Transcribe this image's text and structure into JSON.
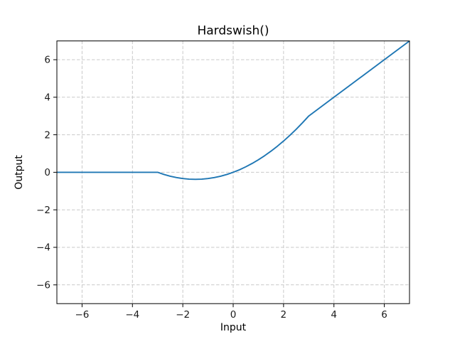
{
  "figure": {
    "title": "Hardswish()",
    "xlabel": "Input",
    "ylabel": "Output"
  },
  "chart_data": {
    "type": "line",
    "title": "Hardswish()",
    "xlabel": "Input",
    "ylabel": "Output",
    "xlim": [
      -7,
      7
    ],
    "ylim": [
      -7,
      7
    ],
    "xticks": [
      -6,
      -4,
      -2,
      0,
      2,
      4,
      6
    ],
    "yticks": [
      -6,
      -4,
      -2,
      0,
      2,
      4,
      6
    ],
    "xtick_labels": [
      "−6",
      "−4",
      "−2",
      "0",
      "2",
      "4",
      "6"
    ],
    "ytick_labels": [
      "−6",
      "−4",
      "−2",
      "0",
      "2",
      "4",
      "6"
    ],
    "grid": true,
    "grid_linestyle": "dashed",
    "grid_color": "#c9c9c9",
    "legend": "none",
    "series": [
      {
        "name": "Hardswish",
        "color": "#1f77b4",
        "x": [
          -7,
          -3,
          -2.75,
          -2.5,
          -2.25,
          -2,
          -1.75,
          -1.5,
          -1.25,
          -1,
          -0.75,
          -0.5,
          -0.25,
          0,
          0.25,
          0.5,
          0.75,
          1,
          1.25,
          1.5,
          1.75,
          2,
          2.25,
          2.5,
          2.75,
          3,
          4,
          5,
          6,
          7
        ],
        "y": [
          0,
          0,
          -0.1146,
          -0.2083,
          -0.2813,
          -0.3333,
          -0.3646,
          -0.375,
          -0.3646,
          -0.3333,
          -0.2813,
          -0.2083,
          -0.1146,
          0,
          0.1354,
          0.2917,
          0.4688,
          0.6667,
          0.8854,
          1.125,
          1.3854,
          1.6667,
          1.9688,
          2.2917,
          2.6354,
          3,
          4,
          5,
          6,
          7
        ]
      }
    ]
  }
}
